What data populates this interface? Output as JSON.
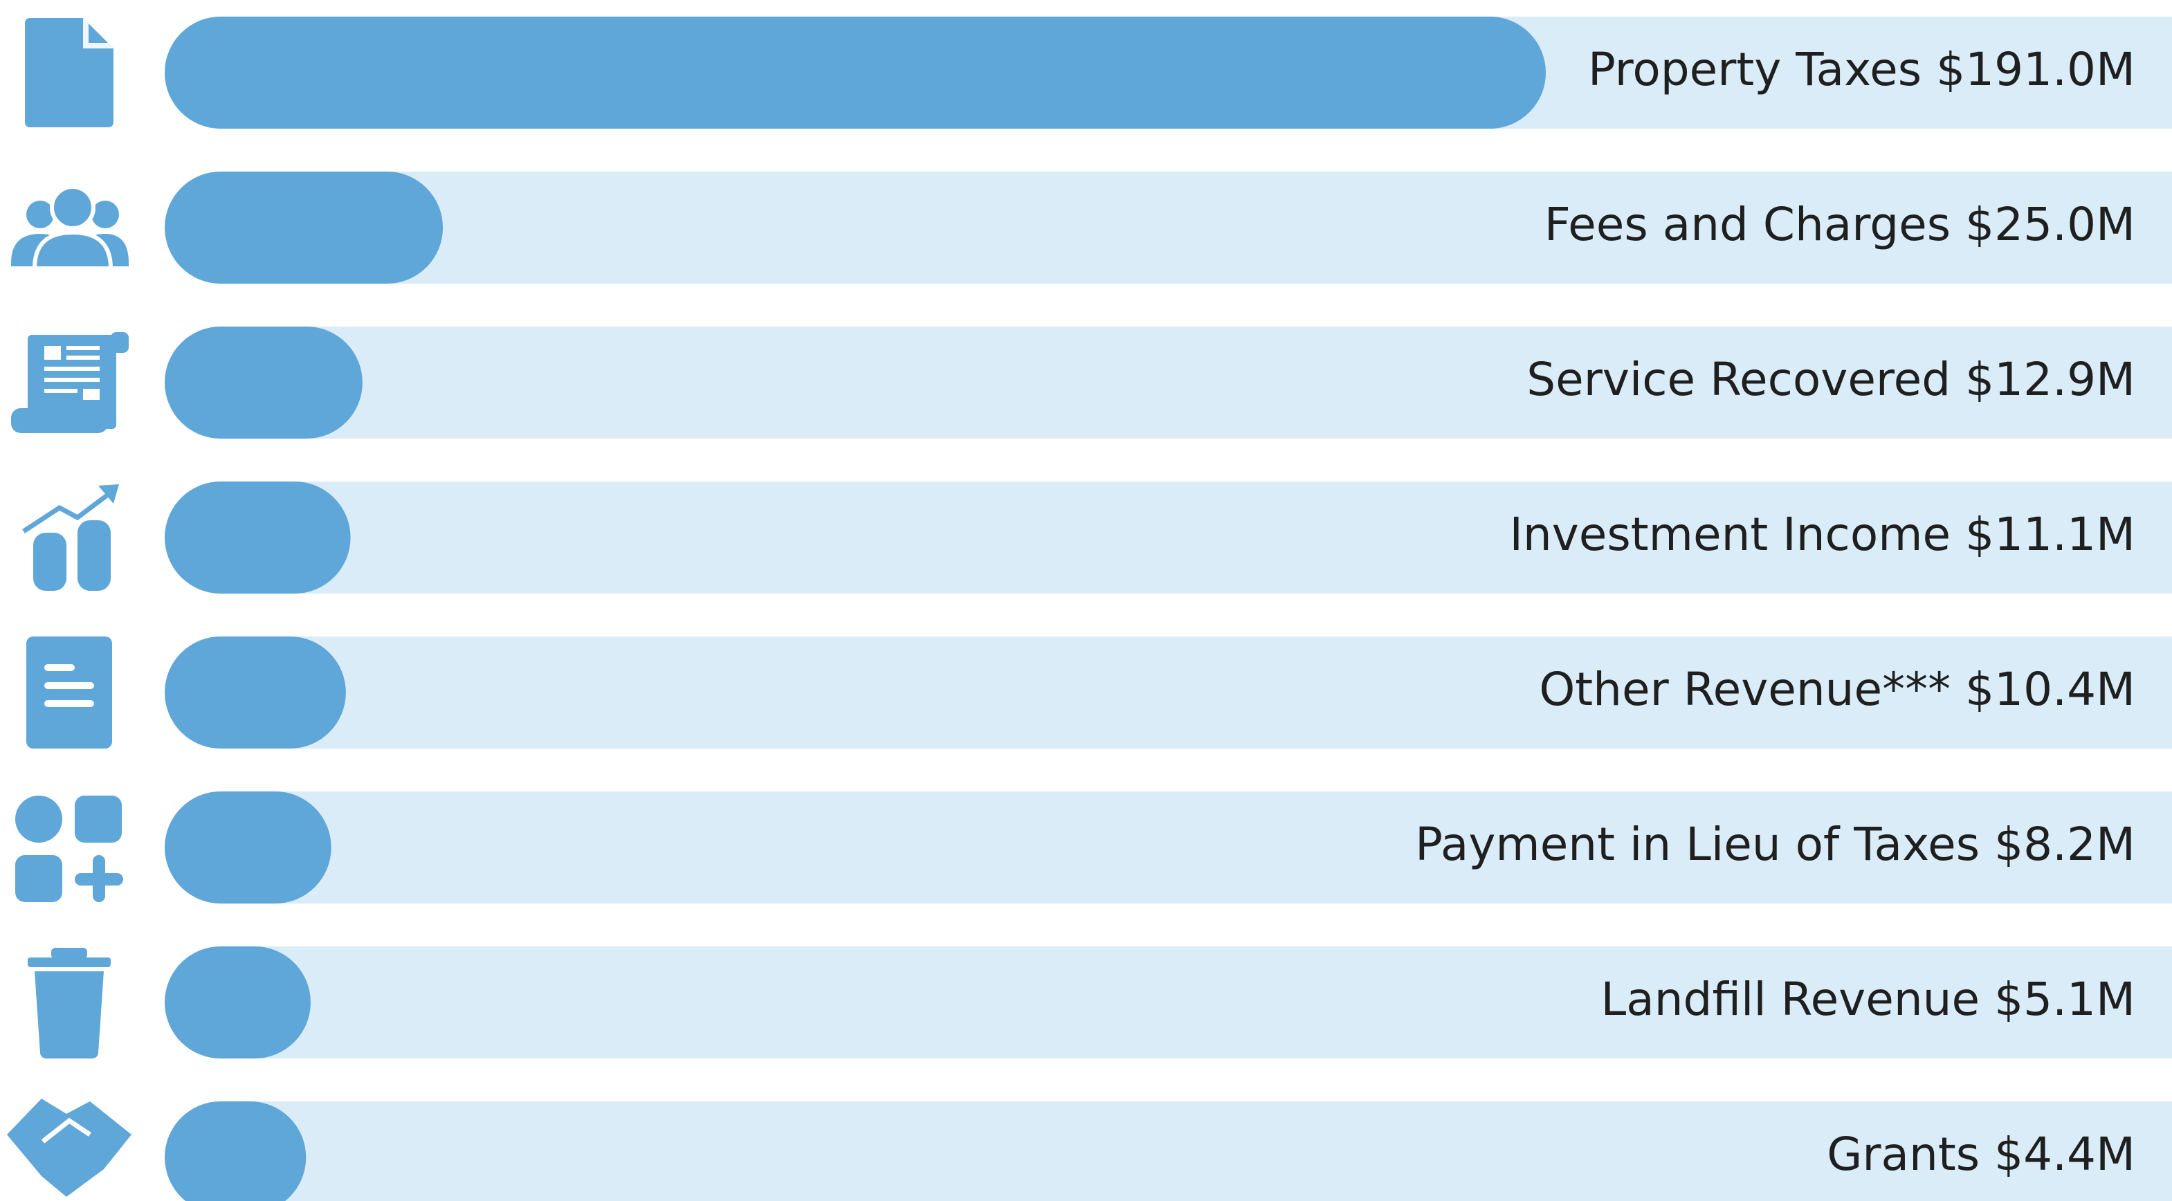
{
  "chart_data": {
    "type": "bar",
    "orientation": "horizontal",
    "categories": [
      "Property Taxes",
      "Fees and Charges",
      "Service Recovered",
      "Investment Income",
      "Other Revenue***",
      "Payment in Lieu of Taxes",
      "Landfill Revenue",
      "Grants"
    ],
    "values": [
      191.0,
      25.0,
      12.9,
      11.1,
      10.4,
      8.2,
      5.1,
      4.4
    ],
    "value_labels": [
      "$191.0M",
      "$25.0M",
      "$12.9M",
      "$11.1M",
      "$10.4M",
      "$8.2M",
      "$5.1M",
      "$4.4M"
    ],
    "color": "#5fa6d9",
    "track_color": "#d9ecf8"
  }
}
